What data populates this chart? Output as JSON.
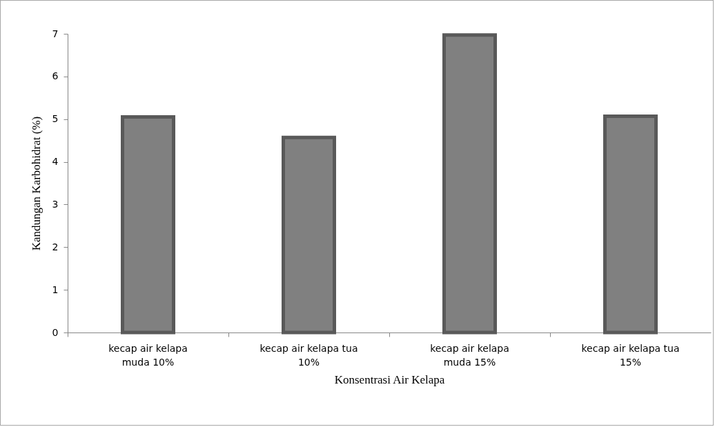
{
  "chart_data": {
    "type": "bar",
    "xlabel": "Konsentrasi Air Kelapa",
    "ylabel": "Kandungan Karbohidrat (%)",
    "categories": [
      "kecap air kelapa muda 10%",
      "kecap air kelapa tua 10%",
      "kecap air kelapa muda 15%",
      "kecap air kelapa tua 15%"
    ],
    "values": [
      5.05,
      4.57,
      6.97,
      5.07
    ],
    "color": "#808080",
    "ylim": [
      0,
      7
    ],
    "yticks": [
      0,
      1,
      2,
      3,
      4,
      5,
      6,
      7
    ],
    "grid": false
  }
}
